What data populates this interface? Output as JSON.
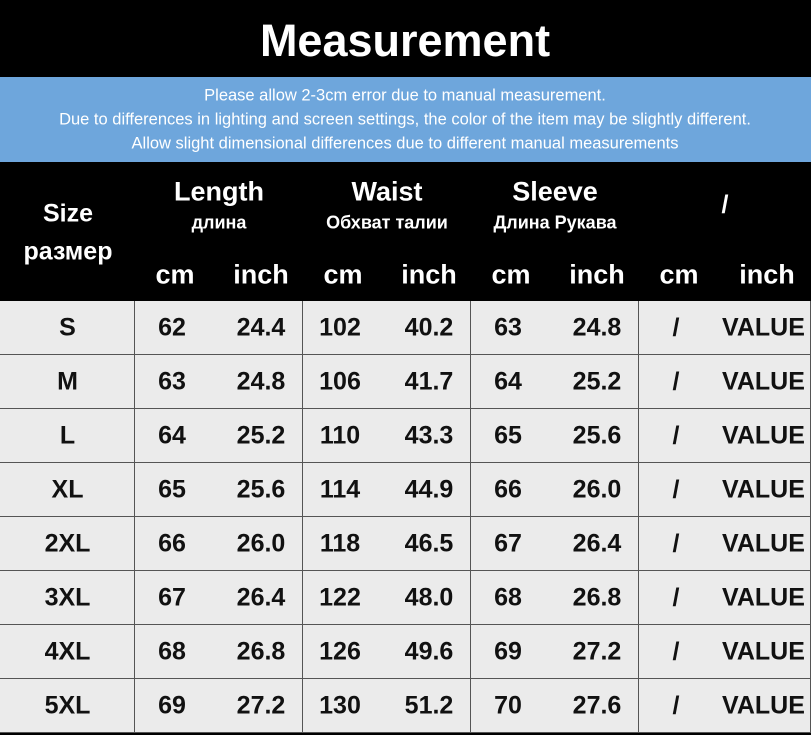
{
  "title": "Measurement",
  "notes": [
    "Please allow 2-3cm error due to manual measurement.",
    "Due to differences in lighting and screen settings, the color of the item may be slightly different.",
    "Allow slight dimensional differences due to different manual measurements"
  ],
  "table": {
    "size_label": [
      "Size",
      "размер"
    ],
    "groups": [
      {
        "name": "Length",
        "sub": "длина"
      },
      {
        "name": "Waist",
        "sub": "Обхват талии"
      },
      {
        "name": "Sleeve",
        "sub": "Длина Рукава"
      },
      {
        "name": "/"
      }
    ],
    "units": [
      "cm",
      "inch",
      "cm",
      "inch",
      "cm",
      "inch",
      "cm",
      "inch"
    ],
    "rows": [
      [
        "S",
        "62",
        "24.4",
        "102",
        "40.2",
        "63",
        "24.8",
        "/",
        "VALUE"
      ],
      [
        "M",
        "63",
        "24.8",
        "106",
        "41.7",
        "64",
        "25.2",
        "/",
        "VALUE"
      ],
      [
        "L",
        "64",
        "25.2",
        "110",
        "43.3",
        "65",
        "25.6",
        "/",
        "VALUE"
      ],
      [
        "XL",
        "65",
        "25.6",
        "114",
        "44.9",
        "66",
        "26.0",
        "/",
        "VALUE"
      ],
      [
        "2XL",
        "66",
        "26.0",
        "118",
        "46.5",
        "67",
        "26.4",
        "/",
        "VALUE"
      ],
      [
        "3XL",
        "67",
        "26.4",
        "122",
        "48.0",
        "68",
        "26.8",
        "/",
        "VALUE"
      ],
      [
        "4XL",
        "68",
        "26.8",
        "126",
        "49.6",
        "69",
        "27.2",
        "/",
        "VALUE"
      ],
      [
        "5XL",
        "69",
        "27.2",
        "130",
        "51.2",
        "70",
        "27.6",
        "/",
        "VALUE"
      ]
    ]
  }
}
